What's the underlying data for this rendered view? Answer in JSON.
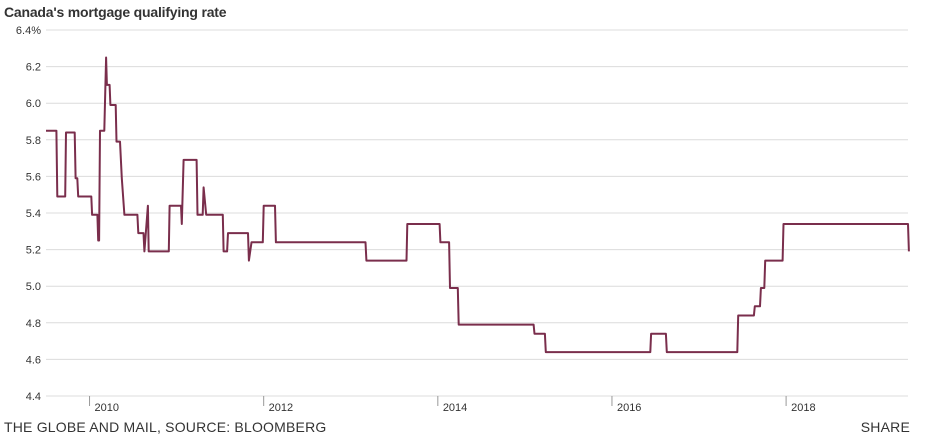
{
  "chart_data": {
    "type": "line",
    "title": "Canada's mortgage qualifying rate",
    "xlabel": "",
    "ylabel": "",
    "ylim": [
      4.4,
      6.4
    ],
    "xlim": [
      2009.5,
      2019.4
    ],
    "grid": true,
    "y_ticks": [
      4.4,
      4.6,
      4.8,
      5.0,
      5.2,
      5.4,
      5.6,
      5.8,
      6.0,
      6.2,
      6.4
    ],
    "y_tick_labels": [
      "4.4",
      "4.6",
      "4.8",
      "5.0",
      "5.2",
      "5.4",
      "5.6",
      "5.8",
      "6.0",
      "6.2",
      "6.4%"
    ],
    "x_ticks": [
      2010,
      2012,
      2014,
      2016,
      2018
    ],
    "x_tick_labels": [
      "2010",
      "2012",
      "2014",
      "2016",
      "2018"
    ],
    "line_color": "#7a2e4c",
    "series": [
      {
        "name": "",
        "x": [
          2009.5,
          2009.62,
          2009.63,
          2009.72,
          2009.73,
          2009.83,
          2009.84,
          2009.86,
          2009.87,
          2009.9,
          2009.91,
          2010.02,
          2010.03,
          2010.08,
          2010.09,
          2010.1,
          2010.11,
          2010.12,
          2010.17,
          2010.19,
          2010.2,
          2010.23,
          2010.24,
          2010.3,
          2010.31,
          2010.35,
          2010.37,
          2010.4,
          2010.41,
          2010.55,
          2010.56,
          2010.62,
          2010.63,
          2010.67,
          2010.68,
          2010.7,
          2010.71,
          2010.91,
          2010.92,
          2011.05,
          2011.06,
          2011.08,
          2011.09,
          2011.23,
          2011.24,
          2011.3,
          2011.31,
          2011.34,
          2011.36,
          2011.53,
          2011.54,
          2011.58,
          2011.59,
          2011.82,
          2011.83,
          2011.86,
          2011.87,
          2011.99,
          2012.0,
          2012.13,
          2012.14,
          2012.4,
          2012.41,
          2013.17,
          2013.18,
          2013.64,
          2013.65,
          2014.02,
          2014.03,
          2014.13,
          2014.14,
          2014.23,
          2014.24,
          2015.1,
          2015.11,
          2015.23,
          2015.24,
          2016.44,
          2016.45,
          2016.62,
          2016.63,
          2017.44,
          2017.45,
          2017.63,
          2017.64,
          2017.7,
          2017.71,
          2017.75,
          2017.76,
          2017.96,
          2017.97,
          2018.28,
          2018.29,
          2019.4,
          2019.41
        ],
        "y": [
          5.85,
          5.85,
          5.49,
          5.49,
          5.84,
          5.84,
          5.59,
          5.59,
          5.49,
          5.49,
          5.49,
          5.49,
          5.39,
          5.39,
          5.39,
          5.25,
          5.25,
          5.85,
          5.85,
          6.25,
          6.1,
          6.1,
          5.99,
          5.99,
          5.79,
          5.79,
          5.59,
          5.39,
          5.39,
          5.39,
          5.29,
          5.29,
          5.19,
          5.44,
          5.19,
          5.19,
          5.19,
          5.19,
          5.44,
          5.44,
          5.34,
          5.69,
          5.69,
          5.69,
          5.39,
          5.39,
          5.54,
          5.39,
          5.39,
          5.39,
          5.19,
          5.19,
          5.29,
          5.29,
          5.14,
          5.24,
          5.24,
          5.24,
          5.44,
          5.44,
          5.24,
          5.24,
          5.24,
          5.24,
          5.14,
          5.14,
          5.34,
          5.34,
          5.24,
          5.24,
          4.99,
          4.99,
          4.79,
          4.79,
          4.74,
          4.74,
          4.64,
          4.64,
          4.74,
          4.74,
          4.64,
          4.64,
          4.84,
          4.84,
          4.89,
          4.89,
          4.99,
          4.99,
          5.14,
          5.14,
          5.34,
          5.34,
          5.34,
          5.34,
          5.19
        ]
      }
    ]
  },
  "footer": {
    "source": "THE GLOBE AND MAIL, SOURCE: BLOOMBERG",
    "share": "SHARE"
  }
}
